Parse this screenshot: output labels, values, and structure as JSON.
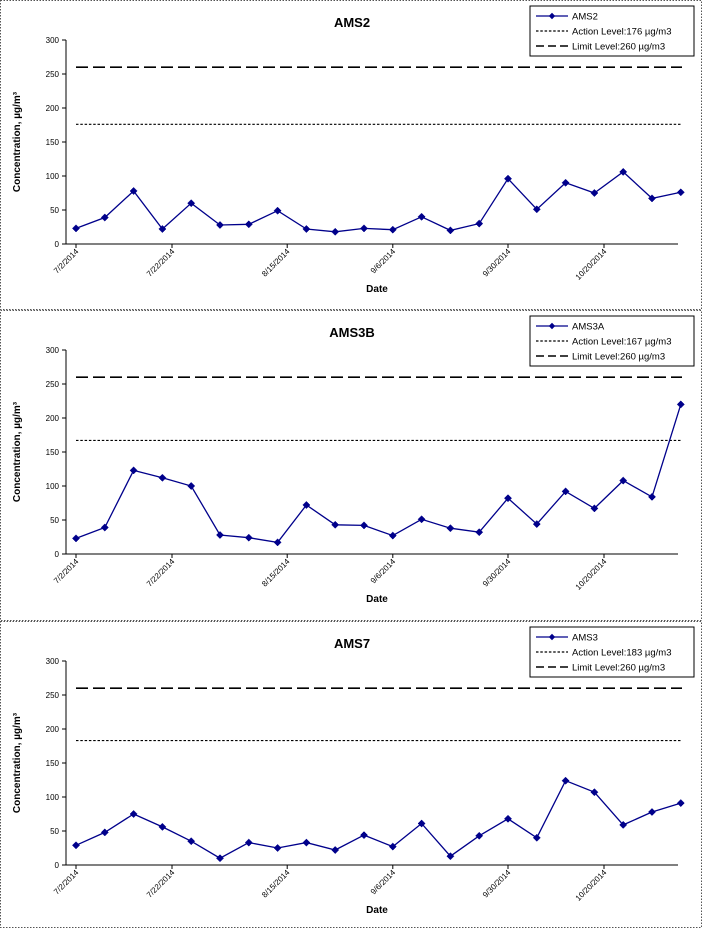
{
  "chart_data": [
    {
      "type": "line",
      "title": "AMS2",
      "xlabel": "Date",
      "ylabel": "Concentration, µg/m³",
      "ylim": [
        0,
        300
      ],
      "yticks": [
        "0",
        "50",
        "100",
        "150",
        "200",
        "250",
        "300"
      ],
      "xticks": [
        "7/2/2014",
        "7/22/2014",
        "8/15/2014",
        "9/6/2014",
        "9/30/2014",
        "10/20/2014"
      ],
      "legend_position": "top-right",
      "series": [
        {
          "name": "AMS2",
          "color": "#00008B",
          "x": [
            "7/2/2014",
            "7/8/2014",
            "7/14/2014",
            "7/20/2014",
            "7/26/2014",
            "8/1/2014",
            "8/7/2014",
            "8/13/2014",
            "8/19/2014",
            "8/25/2014",
            "8/31/2014",
            "9/6/2014",
            "9/12/2014",
            "9/18/2014",
            "9/24/2014",
            "9/30/2014",
            "10/6/2014",
            "10/12/2014",
            "10/18/2014",
            "10/24/2014",
            "10/30/2014",
            "11/5/2014"
          ],
          "values": [
            23,
            39,
            78,
            22,
            60,
            28,
            29,
            49,
            22,
            18,
            23,
            21,
            40,
            20,
            30,
            96,
            51,
            90,
            75,
            106,
            67,
            76
          ]
        },
        {
          "name": "Action Level:176 µg/m3",
          "style": "dotted",
          "value": 176
        },
        {
          "name": "Limit Level:260 µg/m3",
          "style": "dashed",
          "value": 260
        }
      ]
    },
    {
      "type": "line",
      "title": "AMS3B",
      "xlabel": "Date",
      "ylabel": "Concentration, µg/m³",
      "ylim": [
        0,
        300
      ],
      "yticks": [
        "0",
        "50",
        "100",
        "150",
        "200",
        "250",
        "300"
      ],
      "xticks": [
        "7/2/2014",
        "7/22/2014",
        "8/15/2014",
        "9/6/2014",
        "9/30/2014",
        "10/20/2014"
      ],
      "legend_position": "top-right",
      "series": [
        {
          "name": "AMS3A",
          "color": "#00008B",
          "x": [
            "7/2/2014",
            "7/8/2014",
            "7/14/2014",
            "7/20/2014",
            "7/26/2014",
            "8/1/2014",
            "8/7/2014",
            "8/13/2014",
            "8/19/2014",
            "8/25/2014",
            "8/31/2014",
            "9/6/2014",
            "9/12/2014",
            "9/18/2014",
            "9/24/2014",
            "9/30/2014",
            "10/6/2014",
            "10/12/2014",
            "10/18/2014",
            "10/24/2014",
            "10/30/2014",
            "11/5/2014"
          ],
          "values": [
            23,
            39,
            123,
            112,
            100,
            28,
            24,
            17,
            72,
            43,
            42,
            27,
            51,
            38,
            32,
            82,
            44,
            92,
            67,
            108,
            84,
            220
          ]
        },
        {
          "name": "Action Level:167 µg/m3",
          "style": "dotted",
          "value": 167
        },
        {
          "name": "Limit Level:260 µg/m3",
          "style": "dashed",
          "value": 260
        }
      ]
    },
    {
      "type": "line",
      "title": "AMS7",
      "xlabel": "Date",
      "ylabel": "Concentration, µg/m³",
      "ylim": [
        0,
        300
      ],
      "yticks": [
        "0",
        "50",
        "100",
        "150",
        "200",
        "250",
        "300"
      ],
      "xticks": [
        "7/2/2014",
        "7/22/2014",
        "8/15/2014",
        "9/6/2014",
        "9/30/2014",
        "10/20/2014"
      ],
      "legend_position": "top-right",
      "series": [
        {
          "name": "AMS3",
          "color": "#00008B",
          "x": [
            "7/2/2014",
            "7/8/2014",
            "7/14/2014",
            "7/20/2014",
            "7/26/2014",
            "8/1/2014",
            "8/7/2014",
            "8/13/2014",
            "8/19/2014",
            "8/25/2014",
            "8/31/2014",
            "9/6/2014",
            "9/12/2014",
            "9/18/2014",
            "9/24/2014",
            "9/30/2014",
            "10/6/2014",
            "10/12/2014",
            "10/18/2014",
            "10/24/2014",
            "10/30/2014",
            "11/5/2014"
          ],
          "values": [
            29,
            48,
            75,
            56,
            35,
            10,
            33,
            25,
            33,
            22,
            44,
            27,
            61,
            13,
            43,
            68,
            40,
            124,
            107,
            59,
            78,
            91
          ]
        },
        {
          "name": "Action Level:183 µg/m3",
          "style": "dotted",
          "value": 183
        },
        {
          "name": "Limit Level:260 µg/m3",
          "style": "dashed",
          "value": 260
        }
      ]
    }
  ]
}
